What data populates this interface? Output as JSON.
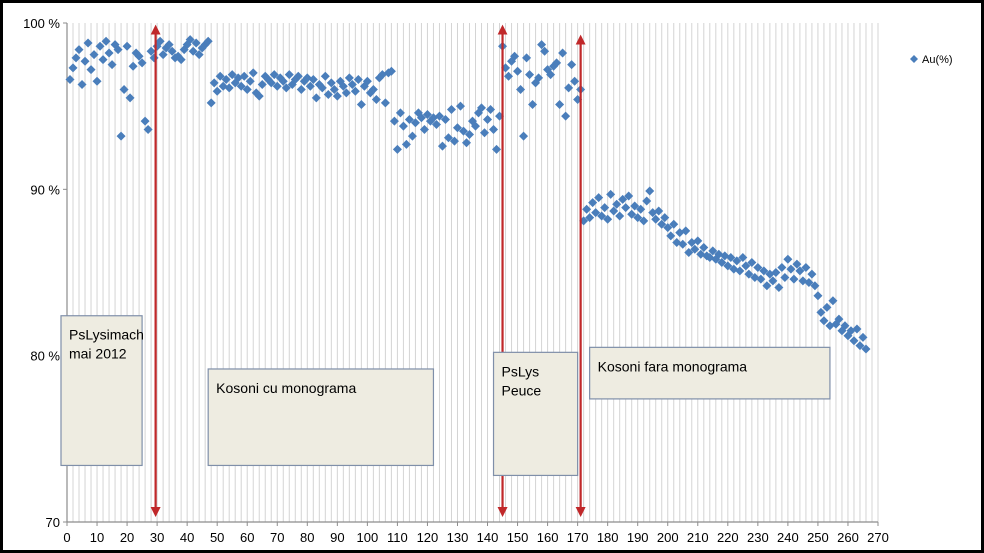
{
  "chart_data": {
    "type": "scatter",
    "title": "",
    "xlabel": "",
    "ylabel": "",
    "xlim": [
      0,
      270
    ],
    "ylim": [
      70,
      100
    ],
    "x_ticks": [
      0,
      10,
      20,
      30,
      40,
      50,
      60,
      70,
      80,
      90,
      100,
      110,
      120,
      130,
      140,
      150,
      160,
      170,
      180,
      190,
      200,
      210,
      220,
      230,
      240,
      250,
      260,
      270
    ],
    "y_ticks": [
      {
        "value": 100,
        "label": "100 %"
      },
      {
        "value": 90,
        "label": "90 %"
      },
      {
        "value": 80,
        "label": "80 %"
      },
      {
        "value": 70,
        "label": "70"
      }
    ],
    "grid": "vertical",
    "legend": {
      "position": "top-right",
      "entries": [
        "Au(%)"
      ]
    },
    "series": [
      {
        "name": "Au(%)",
        "color": "#4a7ebb",
        "marker": "diamond",
        "points": [
          [
            1,
            96.6
          ],
          [
            2,
            97.3
          ],
          [
            3,
            97.9
          ],
          [
            4,
            98.4
          ],
          [
            5,
            96.3
          ],
          [
            6,
            97.7
          ],
          [
            7,
            98.8
          ],
          [
            8,
            97.2
          ],
          [
            9,
            98.1
          ],
          [
            10,
            96.5
          ],
          [
            11,
            98.6
          ],
          [
            12,
            97.8
          ],
          [
            13,
            98.9
          ],
          [
            14,
            98.2
          ],
          [
            15,
            97.5
          ],
          [
            16,
            98.7
          ],
          [
            17,
            98.4
          ],
          [
            18,
            93.2
          ],
          [
            19,
            96.0
          ],
          [
            20,
            98.6
          ],
          [
            21,
            95.5
          ],
          [
            22,
            97.4
          ],
          [
            23,
            98.2
          ],
          [
            24,
            98.0
          ],
          [
            25,
            97.6
          ],
          [
            26,
            94.1
          ],
          [
            27,
            93.6
          ],
          [
            28,
            98.3
          ],
          [
            29,
            97.9
          ],
          [
            30,
            98.6
          ],
          [
            31,
            98.9
          ],
          [
            32,
            98.1
          ],
          [
            33,
            98.5
          ],
          [
            34,
            98.7
          ],
          [
            35,
            98.3
          ],
          [
            36,
            97.9
          ],
          [
            37,
            98.0
          ],
          [
            38,
            97.8
          ],
          [
            39,
            98.4
          ],
          [
            40,
            98.7
          ],
          [
            41,
            99.0
          ],
          [
            42,
            98.3
          ],
          [
            43,
            98.8
          ],
          [
            44,
            98.1
          ],
          [
            45,
            98.5
          ],
          [
            46,
            98.7
          ],
          [
            47,
            98.9
          ],
          [
            48,
            95.2
          ],
          [
            49,
            96.4
          ],
          [
            50,
            95.9
          ],
          [
            51,
            96.8
          ],
          [
            52,
            96.2
          ],
          [
            53,
            96.6
          ],
          [
            54,
            96.1
          ],
          [
            55,
            96.9
          ],
          [
            56,
            96.4
          ],
          [
            57,
            96.7
          ],
          [
            58,
            96.2
          ],
          [
            59,
            96.8
          ],
          [
            60,
            96.0
          ],
          [
            61,
            96.5
          ],
          [
            62,
            97.0
          ],
          [
            63,
            95.8
          ],
          [
            64,
            95.6
          ],
          [
            65,
            96.3
          ],
          [
            66,
            96.8
          ],
          [
            67,
            96.6
          ],
          [
            68,
            96.4
          ],
          [
            69,
            96.9
          ],
          [
            70,
            96.2
          ],
          [
            71,
            96.7
          ],
          [
            72,
            96.5
          ],
          [
            73,
            96.1
          ],
          [
            74,
            96.9
          ],
          [
            75,
            96.3
          ],
          [
            76,
            96.6
          ],
          [
            77,
            96.8
          ],
          [
            78,
            96.0
          ],
          [
            79,
            96.5
          ],
          [
            80,
            96.7
          ],
          [
            81,
            96.2
          ],
          [
            82,
            96.6
          ],
          [
            83,
            95.5
          ],
          [
            84,
            96.3
          ],
          [
            85,
            96.1
          ],
          [
            86,
            96.8
          ],
          [
            87,
            95.7
          ],
          [
            88,
            96.4
          ],
          [
            89,
            96.0
          ],
          [
            90,
            95.6
          ],
          [
            91,
            96.5
          ],
          [
            92,
            96.2
          ],
          [
            93,
            95.8
          ],
          [
            94,
            96.7
          ],
          [
            95,
            96.3
          ],
          [
            96,
            95.9
          ],
          [
            97,
            96.6
          ],
          [
            98,
            95.1
          ],
          [
            99,
            96.2
          ],
          [
            100,
            96.5
          ],
          [
            101,
            95.8
          ],
          [
            102,
            96.0
          ],
          [
            103,
            95.4
          ],
          [
            104,
            96.7
          ],
          [
            105,
            96.9
          ],
          [
            106,
            95.2
          ],
          [
            107,
            97.0
          ],
          [
            108,
            97.1
          ],
          [
            109,
            94.1
          ],
          [
            110,
            92.4
          ],
          [
            111,
            94.6
          ],
          [
            112,
            93.8
          ],
          [
            113,
            92.7
          ],
          [
            114,
            94.2
          ],
          [
            115,
            93.2
          ],
          [
            116,
            94.0
          ],
          [
            117,
            94.6
          ],
          [
            118,
            94.3
          ],
          [
            119,
            93.6
          ],
          [
            120,
            94.5
          ],
          [
            121,
            94.1
          ],
          [
            122,
            94.3
          ],
          [
            123,
            93.9
          ],
          [
            124,
            94.4
          ],
          [
            125,
            92.6
          ],
          [
            126,
            94.2
          ],
          [
            127,
            93.1
          ],
          [
            128,
            94.8
          ],
          [
            129,
            92.9
          ],
          [
            130,
            93.7
          ],
          [
            131,
            95.0
          ],
          [
            132,
            93.5
          ],
          [
            133,
            92.8
          ],
          [
            134,
            93.3
          ],
          [
            135,
            94.1
          ],
          [
            136,
            93.8
          ],
          [
            137,
            94.6
          ],
          [
            138,
            94.9
          ],
          [
            139,
            93.4
          ],
          [
            140,
            94.2
          ],
          [
            141,
            94.8
          ],
          [
            142,
            93.6
          ],
          [
            143,
            92.4
          ],
          [
            144,
            94.4
          ],
          [
            145,
            98.6
          ],
          [
            146,
            97.3
          ],
          [
            147,
            96.8
          ],
          [
            148,
            97.7
          ],
          [
            149,
            98.0
          ],
          [
            150,
            97.1
          ],
          [
            151,
            96.0
          ],
          [
            152,
            93.2
          ],
          [
            153,
            97.9
          ],
          [
            154,
            96.9
          ],
          [
            155,
            95.1
          ],
          [
            156,
            96.4
          ],
          [
            157,
            96.7
          ],
          [
            158,
            98.7
          ],
          [
            159,
            98.3
          ],
          [
            160,
            97.2
          ],
          [
            161,
            96.9
          ],
          [
            162,
            97.4
          ],
          [
            163,
            97.6
          ],
          [
            164,
            95.1
          ],
          [
            165,
            98.2
          ],
          [
            166,
            94.4
          ],
          [
            167,
            96.1
          ],
          [
            168,
            97.5
          ],
          [
            169,
            96.5
          ],
          [
            170,
            95.4
          ],
          [
            171,
            96.0
          ],
          [
            172,
            88.1
          ],
          [
            173,
            88.8
          ],
          [
            174,
            88.3
          ],
          [
            175,
            89.2
          ],
          [
            176,
            88.6
          ],
          [
            177,
            89.5
          ],
          [
            178,
            88.4
          ],
          [
            179,
            88.9
          ],
          [
            180,
            88.2
          ],
          [
            181,
            89.7
          ],
          [
            182,
            88.7
          ],
          [
            183,
            89.1
          ],
          [
            184,
            88.4
          ],
          [
            185,
            89.4
          ],
          [
            186,
            88.9
          ],
          [
            187,
            89.6
          ],
          [
            188,
            88.5
          ],
          [
            189,
            89.0
          ],
          [
            190,
            88.3
          ],
          [
            191,
            88.8
          ],
          [
            192,
            88.1
          ],
          [
            193,
            89.3
          ],
          [
            194,
            89.9
          ],
          [
            195,
            88.6
          ],
          [
            196,
            88.2
          ],
          [
            197,
            88.7
          ],
          [
            198,
            87.9
          ],
          [
            199,
            88.3
          ],
          [
            200,
            87.7
          ],
          [
            201,
            87.2
          ],
          [
            202,
            87.9
          ],
          [
            203,
            86.8
          ],
          [
            204,
            87.4
          ],
          [
            205,
            86.7
          ],
          [
            206,
            87.5
          ],
          [
            207,
            86.2
          ],
          [
            208,
            86.8
          ],
          [
            209,
            86.4
          ],
          [
            210,
            86.9
          ],
          [
            211,
            86.1
          ],
          [
            212,
            86.5
          ],
          [
            213,
            86.0
          ],
          [
            214,
            85.9
          ],
          [
            215,
            86.3
          ],
          [
            216,
            85.8
          ],
          [
            217,
            86.1
          ],
          [
            218,
            85.6
          ],
          [
            219,
            86.0
          ],
          [
            220,
            85.4
          ],
          [
            221,
            85.9
          ],
          [
            222,
            85.2
          ],
          [
            223,
            85.7
          ],
          [
            224,
            85.1
          ],
          [
            225,
            85.9
          ],
          [
            226,
            85.4
          ],
          [
            227,
            84.9
          ],
          [
            228,
            85.6
          ],
          [
            229,
            84.7
          ],
          [
            230,
            85.3
          ],
          [
            231,
            84.6
          ],
          [
            232,
            85.1
          ],
          [
            233,
            84.2
          ],
          [
            234,
            84.9
          ],
          [
            235,
            84.5
          ],
          [
            236,
            85.0
          ],
          [
            237,
            84.1
          ],
          [
            238,
            85.3
          ],
          [
            239,
            84.7
          ],
          [
            240,
            85.8
          ],
          [
            241,
            85.2
          ],
          [
            242,
            84.6
          ],
          [
            243,
            85.5
          ],
          [
            244,
            85.1
          ],
          [
            245,
            84.5
          ],
          [
            246,
            85.3
          ],
          [
            247,
            84.4
          ],
          [
            248,
            84.9
          ],
          [
            249,
            84.2
          ],
          [
            250,
            83.6
          ],
          [
            251,
            82.6
          ],
          [
            252,
            82.1
          ],
          [
            253,
            82.9
          ],
          [
            254,
            81.8
          ],
          [
            255,
            83.3
          ],
          [
            256,
            81.9
          ],
          [
            257,
            82.2
          ],
          [
            258,
            81.5
          ],
          [
            259,
            81.8
          ],
          [
            260,
            81.2
          ],
          [
            261,
            81.5
          ],
          [
            262,
            80.9
          ],
          [
            263,
            81.6
          ],
          [
            264,
            80.6
          ],
          [
            265,
            81.1
          ],
          [
            266,
            80.4
          ]
        ]
      }
    ],
    "annotations": [
      {
        "text": "PsLysimach\nmai 2012",
        "x0": -2,
        "x1": 25,
        "y_top": 82.4,
        "y_bottom": 73.4
      },
      {
        "text": "Kosoni  cu monograma",
        "x0": 47,
        "x1": 122,
        "y_top": 79.2,
        "y_bottom": 73.4
      },
      {
        "text": "PsLys\nPeuce",
        "x0": 142,
        "x1": 170,
        "y_top": 80.2,
        "y_bottom": 72.8
      },
      {
        "text": "Kosoni fara monograma",
        "x0": 174,
        "x1": 254,
        "y_top": 80.5,
        "y_bottom": 77.4
      }
    ],
    "arrows": [
      {
        "x": 29.5,
        "y_from": 70.6,
        "y_to": 99.6,
        "double_headed": true
      },
      {
        "x": 145,
        "y_from": 70.6,
        "y_to": 99.6,
        "double_headed": true
      },
      {
        "x": 171,
        "y_from": 70.6,
        "y_to": 99.0,
        "double_headed": true
      }
    ]
  }
}
